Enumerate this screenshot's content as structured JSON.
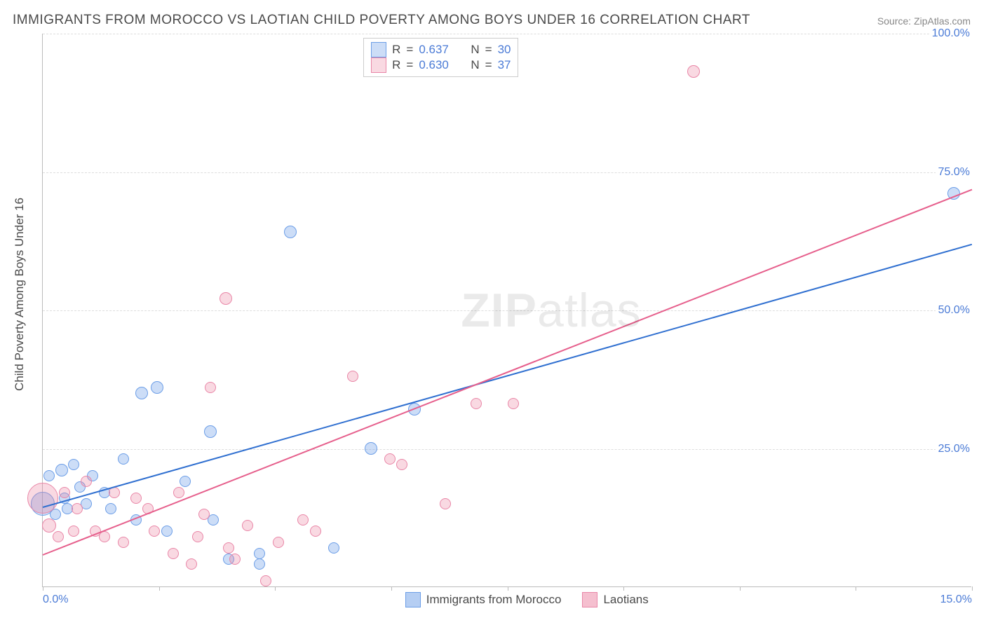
{
  "title": "IMMIGRANTS FROM MOROCCO VS LAOTIAN CHILD POVERTY AMONG BOYS UNDER 16 CORRELATION CHART",
  "source": "Source: ZipAtlas.com",
  "ylabel": "Child Poverty Among Boys Under 16",
  "watermark": {
    "bold": "ZIP",
    "rest": "atlas"
  },
  "chart": {
    "type": "scatter",
    "background_color": "#ffffff",
    "grid_color": "#dddddd",
    "axis_color": "#bbbbbb",
    "tick_color": "#4b7bd6",
    "tick_fontsize": 16,
    "title_fontsize": 19,
    "title_color": "#4a4a4a",
    "xlim": [
      0,
      15
    ],
    "ylim": [
      0,
      100
    ],
    "xticks": [
      0,
      15
    ],
    "xtick_labels": [
      "0.0%",
      "15.0%"
    ],
    "xtick_marks": [
      0,
      1.875,
      3.75,
      5.625,
      7.5,
      9.375,
      11.25,
      13.125,
      15
    ],
    "yticks": [
      25,
      50,
      75,
      100
    ],
    "ytick_labels": [
      "25.0%",
      "50.0%",
      "75.0%",
      "100.0%"
    ],
    "series": [
      {
        "name": "Immigrants from Morocco",
        "marker_fill": "rgba(108,158,231,0.35)",
        "marker_stroke": "#6c9ee7",
        "trend_color": "#2f6fd0",
        "R": 0.637,
        "N": 30,
        "trend": {
          "x1": 0,
          "y1": 14.5,
          "x2": 15,
          "y2": 62
        },
        "points": [
          {
            "x": 0.0,
            "y": 15,
            "r": 17
          },
          {
            "x": 0.1,
            "y": 20,
            "r": 8
          },
          {
            "x": 0.2,
            "y": 13,
            "r": 8
          },
          {
            "x": 0.3,
            "y": 21,
            "r": 9
          },
          {
            "x": 0.35,
            "y": 16,
            "r": 8
          },
          {
            "x": 0.4,
            "y": 14,
            "r": 8
          },
          {
            "x": 0.5,
            "y": 22,
            "r": 8
          },
          {
            "x": 0.6,
            "y": 18,
            "r": 8
          },
          {
            "x": 0.7,
            "y": 15,
            "r": 8
          },
          {
            "x": 0.8,
            "y": 20,
            "r": 8
          },
          {
            "x": 1.0,
            "y": 17,
            "r": 8
          },
          {
            "x": 1.1,
            "y": 14,
            "r": 8
          },
          {
            "x": 1.3,
            "y": 23,
            "r": 8
          },
          {
            "x": 1.5,
            "y": 12,
            "r": 8
          },
          {
            "x": 1.6,
            "y": 35,
            "r": 9
          },
          {
            "x": 1.85,
            "y": 36,
            "r": 9
          },
          {
            "x": 2.0,
            "y": 10,
            "r": 8
          },
          {
            "x": 2.3,
            "y": 19,
            "r": 8
          },
          {
            "x": 2.7,
            "y": 28,
            "r": 9
          },
          {
            "x": 2.75,
            "y": 12,
            "r": 8
          },
          {
            "x": 3.0,
            "y": 5,
            "r": 8
          },
          {
            "x": 3.5,
            "y": 6,
            "r": 8
          },
          {
            "x": 3.5,
            "y": 4,
            "r": 8
          },
          {
            "x": 4.0,
            "y": 64,
            "r": 9
          },
          {
            "x": 4.7,
            "y": 7,
            "r": 8
          },
          {
            "x": 5.3,
            "y": 25,
            "r": 9
          },
          {
            "x": 6.0,
            "y": 32,
            "r": 9
          },
          {
            "x": 14.7,
            "y": 71,
            "r": 9
          }
        ]
      },
      {
        "name": "Laotians",
        "marker_fill": "rgba(235,128,160,0.3)",
        "marker_stroke": "#e986a7",
        "trend_color": "#e65f8c",
        "R": 0.63,
        "N": 37,
        "trend": {
          "x1": 0,
          "y1": 6,
          "x2": 15,
          "y2": 72
        },
        "points": [
          {
            "x": 0.0,
            "y": 16,
            "r": 22
          },
          {
            "x": 0.1,
            "y": 11,
            "r": 10
          },
          {
            "x": 0.25,
            "y": 9,
            "r": 8
          },
          {
            "x": 0.35,
            "y": 17,
            "r": 8
          },
          {
            "x": 0.5,
            "y": 10,
            "r": 8
          },
          {
            "x": 0.55,
            "y": 14,
            "r": 8
          },
          {
            "x": 0.7,
            "y": 19,
            "r": 8
          },
          {
            "x": 0.85,
            "y": 10,
            "r": 8
          },
          {
            "x": 1.0,
            "y": 9,
            "r": 8
          },
          {
            "x": 1.15,
            "y": 17,
            "r": 8
          },
          {
            "x": 1.3,
            "y": 8,
            "r": 8
          },
          {
            "x": 1.5,
            "y": 16,
            "r": 8
          },
          {
            "x": 1.7,
            "y": 14,
            "r": 8
          },
          {
            "x": 1.8,
            "y": 10,
            "r": 8
          },
          {
            "x": 2.1,
            "y": 6,
            "r": 8
          },
          {
            "x": 2.2,
            "y": 17,
            "r": 8
          },
          {
            "x": 2.4,
            "y": 4,
            "r": 8
          },
          {
            "x": 2.5,
            "y": 9,
            "r": 8
          },
          {
            "x": 2.6,
            "y": 13,
            "r": 8
          },
          {
            "x": 2.7,
            "y": 36,
            "r": 8
          },
          {
            "x": 2.95,
            "y": 52,
            "r": 9
          },
          {
            "x": 3.0,
            "y": 7,
            "r": 8
          },
          {
            "x": 3.1,
            "y": 5,
            "r": 8
          },
          {
            "x": 3.3,
            "y": 11,
            "r": 8
          },
          {
            "x": 3.6,
            "y": 1,
            "r": 8
          },
          {
            "x": 3.8,
            "y": 8,
            "r": 8
          },
          {
            "x": 4.2,
            "y": 12,
            "r": 8
          },
          {
            "x": 4.4,
            "y": 10,
            "r": 8
          },
          {
            "x": 5.0,
            "y": 38,
            "r": 8
          },
          {
            "x": 5.6,
            "y": 23,
            "r": 8
          },
          {
            "x": 5.8,
            "y": 22,
            "r": 8
          },
          {
            "x": 6.5,
            "y": 15,
            "r": 8
          },
          {
            "x": 7.0,
            "y": 33,
            "r": 8
          },
          {
            "x": 7.6,
            "y": 33,
            "r": 8
          },
          {
            "x": 10.5,
            "y": 93,
            "r": 9
          }
        ]
      }
    ]
  },
  "legend": {
    "top": {
      "R_label": "R",
      "N_label": "N",
      "eq": "="
    },
    "bottom": [
      {
        "label": "Immigrants from Morocco",
        "fill": "rgba(108,158,231,0.5)",
        "stroke": "#6c9ee7"
      },
      {
        "label": "Laotians",
        "fill": "rgba(235,128,160,0.5)",
        "stroke": "#e986a7"
      }
    ]
  }
}
